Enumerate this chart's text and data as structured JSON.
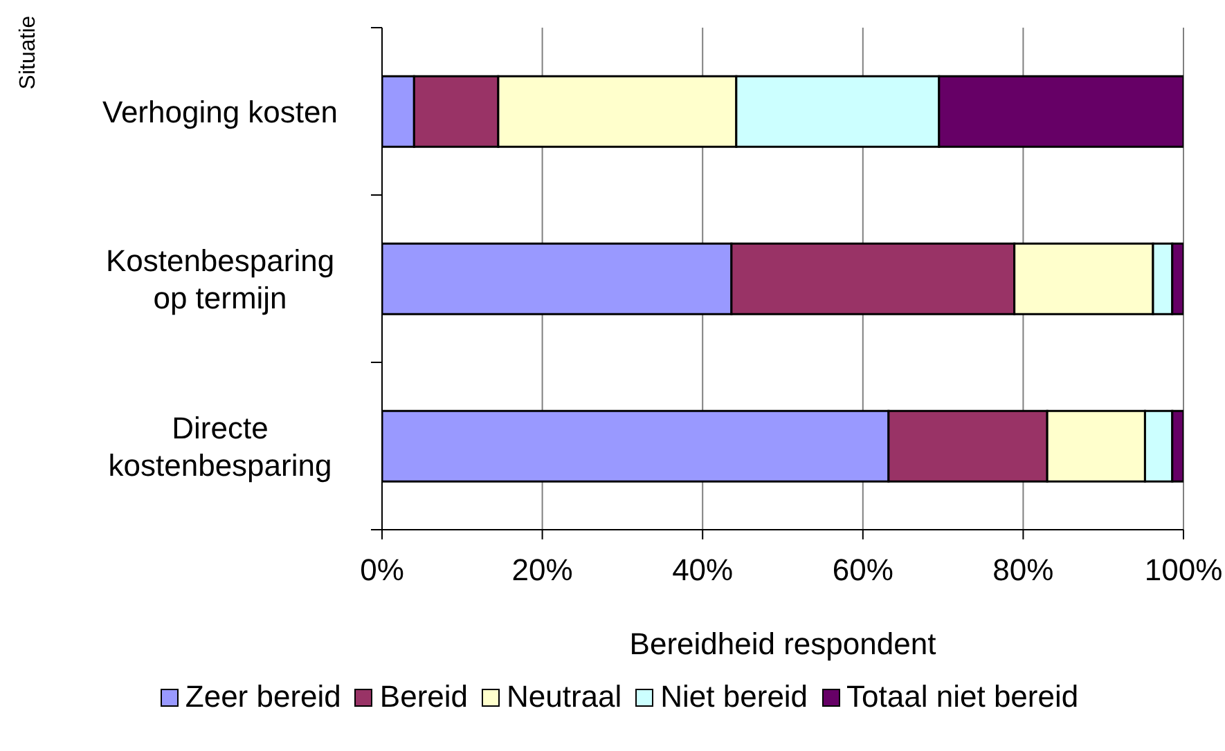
{
  "chart_data": {
    "type": "bar",
    "orientation": "horizontal",
    "stacked": true,
    "xlabel": "Bereidheid respondent",
    "ylabel": "Situatie",
    "categories": [
      "Verhoging kosten",
      "Kostenbesparing op termijn",
      "Directe kostenbesparing"
    ],
    "series": [
      {
        "name": "Zeer bereid",
        "color": "#9999ff",
        "values": [
          4.0,
          43.6,
          63.2
        ]
      },
      {
        "name": "Bereid",
        "color": "#993366",
        "values": [
          10.5,
          35.3,
          19.8
        ]
      },
      {
        "name": "Neutraal",
        "color": "#ffffcc",
        "values": [
          29.7,
          17.3,
          12.2
        ]
      },
      {
        "name": "Niet bereid",
        "color": "#ccffff",
        "values": [
          25.3,
          2.4,
          3.4
        ]
      },
      {
        "name": "Totaal niet bereid",
        "color": "#660066",
        "values": [
          30.5,
          1.4,
          1.4
        ]
      }
    ],
    "xlim": [
      0,
      100
    ],
    "xticks": [
      {
        "value": 0,
        "label": "0%"
      },
      {
        "value": 20,
        "label": "20%"
      },
      {
        "value": 40,
        "label": "40%"
      },
      {
        "value": 60,
        "label": "60%"
      },
      {
        "value": 80,
        "label": "80%"
      },
      {
        "value": 100,
        "label": "100%"
      }
    ],
    "grid": "x",
    "legend": "bottom"
  }
}
